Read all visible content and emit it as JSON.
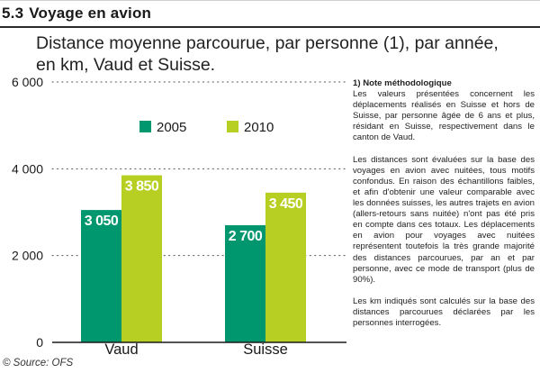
{
  "section": {
    "number": "5.3",
    "title": "Voyage en avion"
  },
  "subtitle": "Distance moyenne parcourue, par personne (1), par année, en km, Vaud et Suisse.",
  "chart_data": {
    "type": "bar",
    "categories": [
      "Vaud",
      "Suisse"
    ],
    "series": [
      {
        "name": "2005",
        "values": [
          3050,
          2700
        ],
        "labels": [
          "3 050",
          "2 700"
        ],
        "color": "#00966e"
      },
      {
        "name": "2010",
        "values": [
          3850,
          3450
        ],
        "labels": [
          "3 850",
          "3 450"
        ],
        "color": "#b6cf22"
      }
    ],
    "ylim": [
      0,
      6000
    ],
    "yticks": [
      0,
      2000,
      4000,
      6000
    ],
    "ytick_labels": [
      "0",
      "2 000",
      "4 000",
      "6 000"
    ],
    "grid": true,
    "gridline_style": "dotted",
    "legend_position": "top-center",
    "xlabel": "",
    "ylabel": "",
    "title": "Distance moyenne parcourue, par personne (1), par année, en km, Vaud et Suisse."
  },
  "note": {
    "title": "1) Note méthodologique",
    "paragraphs": [
      "Les valeurs présentées concernent les déplacements réalisés en Suisse et hors de Suisse, par personne âgée de 6 ans et plus, résidant en Suisse, respectivement dans le canton de Vaud.",
      "Les distances sont évaluées sur la base des voyages en avion avec nuitées, tous motifs confondus. En raison des échantillons faibles, et afin d'obtenir une valeur comparable avec les données suisses, les autres trajets en avion (allers-retours sans nuitée) n'ont pas été pris en compte dans ces totaux. Les déplacements en avion pour voyages avec nuitées représentent toutefois la très grande majorité des distances parcourues, par an et par personne, avec ce mode de transport (plus de 90%).",
      "Les km indiqués sont calculés sur la base des distances parcourues déclarées par les personnes interrogées."
    ]
  },
  "source": "© Source: OFS"
}
